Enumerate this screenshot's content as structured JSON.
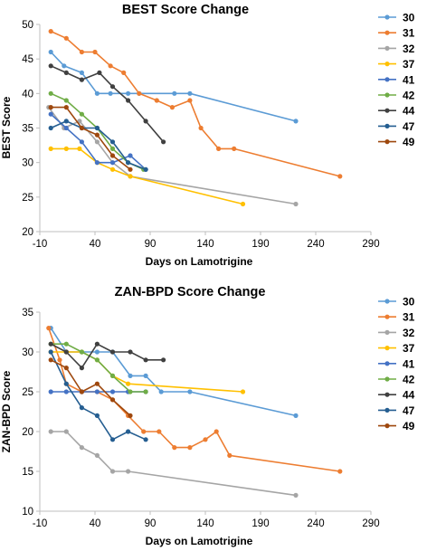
{
  "series_names": [
    "30",
    "31",
    "32",
    "37",
    "41",
    "42",
    "44",
    "47",
    "49"
  ],
  "series_colors": [
    "#5b9bd5",
    "#ed7d31",
    "#a5a5a5",
    "#ffc000",
    "#4472c4",
    "#70ad47",
    "#404040",
    "#255e91",
    "#9e480e"
  ],
  "chart_data": [
    {
      "type": "line",
      "title": "BEST Score Change",
      "xlabel": "Days on Lamotrigine",
      "ylabel": "BEST Score",
      "xlim": [
        -10,
        290
      ],
      "ylim": [
        20,
        50
      ],
      "xticks": [
        -10,
        40,
        90,
        140,
        190,
        240,
        290
      ],
      "yticks": [
        20,
        25,
        30,
        35,
        40,
        45,
        50
      ],
      "legend": "right",
      "grid": false,
      "series": [
        {
          "name": "30",
          "x": [
            0,
            12,
            28,
            42,
            54,
            70,
            80,
            112,
            126,
            222
          ],
          "y": [
            46,
            44,
            43,
            40,
            40,
            40,
            40,
            40,
            40,
            36
          ]
        },
        {
          "name": "31",
          "x": [
            0,
            14,
            28,
            40,
            54,
            66,
            80,
            96,
            110,
            126,
            136,
            152,
            166,
            262
          ],
          "y": [
            49,
            48,
            46,
            46,
            44,
            43,
            40,
            39,
            38,
            39,
            35,
            32,
            32,
            28
          ]
        },
        {
          "name": "32",
          "x": [
            -2,
            12,
            26,
            42,
            56,
            72,
            222
          ],
          "y": [
            38,
            35,
            36,
            33,
            30,
            28,
            24
          ]
        },
        {
          "name": "37",
          "x": [
            0,
            14,
            26,
            42,
            56,
            72,
            174
          ],
          "y": [
            32,
            32,
            32,
            30,
            29,
            28,
            24
          ]
        },
        {
          "name": "41",
          "x": [
            0,
            14,
            28,
            42,
            56,
            72,
            86
          ],
          "y": [
            37,
            35,
            33,
            30,
            30,
            31,
            29
          ]
        },
        {
          "name": "42",
          "x": [
            0,
            14,
            28,
            42,
            56,
            70,
            84
          ],
          "y": [
            40,
            39,
            37,
            35,
            32,
            30,
            29
          ]
        },
        {
          "name": "44",
          "x": [
            0,
            14,
            28,
            44,
            56,
            70,
            86,
            102
          ],
          "y": [
            44,
            43,
            42,
            43,
            41,
            39,
            36,
            33
          ]
        },
        {
          "name": "47",
          "x": [
            0,
            14,
            28,
            42,
            56,
            70,
            86
          ],
          "y": [
            35,
            36,
            35,
            35,
            33,
            30,
            29
          ]
        },
        {
          "name": "49",
          "x": [
            0,
            14,
            28,
            42,
            56,
            72
          ],
          "y": [
            38,
            38,
            35,
            34,
            31,
            29
          ]
        }
      ]
    },
    {
      "type": "line",
      "title": "ZAN-BPD Score Change",
      "xlabel": "Days on Lamotrigine",
      "ylabel": "ZAN-BPD Score",
      "xlim": [
        -10,
        290
      ],
      "ylim": [
        10,
        35
      ],
      "xticks": [
        -10,
        40,
        90,
        140,
        190,
        240,
        290
      ],
      "yticks": [
        10,
        15,
        20,
        25,
        30,
        35
      ],
      "legend": "right",
      "grid": false,
      "series": [
        {
          "name": "30",
          "x": [
            0,
            14,
            28,
            42,
            56,
            72,
            86,
            100,
            126,
            222
          ],
          "y": [
            33,
            30,
            30,
            30,
            30,
            27,
            27,
            25,
            25,
            22
          ]
        },
        {
          "name": "31",
          "x": [
            -2,
            8,
            14,
            28,
            42,
            56,
            70,
            84,
            98,
            112,
            126,
            140,
            150,
            162,
            262
          ],
          "y": [
            33,
            29,
            26,
            25,
            25,
            24,
            22,
            20,
            20,
            18,
            18,
            19,
            20,
            17,
            15
          ]
        },
        {
          "name": "32",
          "x": [
            0,
            14,
            28,
            42,
            56,
            70,
            222
          ],
          "y": [
            20,
            20,
            18,
            17,
            15,
            15,
            12
          ]
        },
        {
          "name": "37",
          "x": [
            0,
            14,
            28,
            42,
            56,
            70,
            174
          ],
          "y": [
            30,
            30,
            30,
            29,
            27,
            26,
            25
          ]
        },
        {
          "name": "41",
          "x": [
            0,
            14,
            28,
            42,
            56,
            70,
            86
          ],
          "y": [
            25,
            25,
            25,
            25,
            25,
            25,
            25
          ]
        },
        {
          "name": "42",
          "x": [
            0,
            14,
            28,
            42,
            56,
            72,
            86
          ],
          "y": [
            31,
            31,
            30,
            29,
            27,
            25,
            25
          ]
        },
        {
          "name": "44",
          "x": [
            0,
            14,
            28,
            42,
            56,
            72,
            86,
            102
          ],
          "y": [
            31,
            30,
            28,
            31,
            30,
            30,
            29,
            29
          ]
        },
        {
          "name": "47",
          "x": [
            0,
            14,
            28,
            42,
            56,
            70,
            86
          ],
          "y": [
            30,
            26,
            23,
            22,
            19,
            20,
            19
          ]
        },
        {
          "name": "49",
          "x": [
            0,
            14,
            28,
            42,
            56,
            72
          ],
          "y": [
            29,
            28,
            25,
            26,
            24,
            22
          ]
        }
      ]
    }
  ]
}
